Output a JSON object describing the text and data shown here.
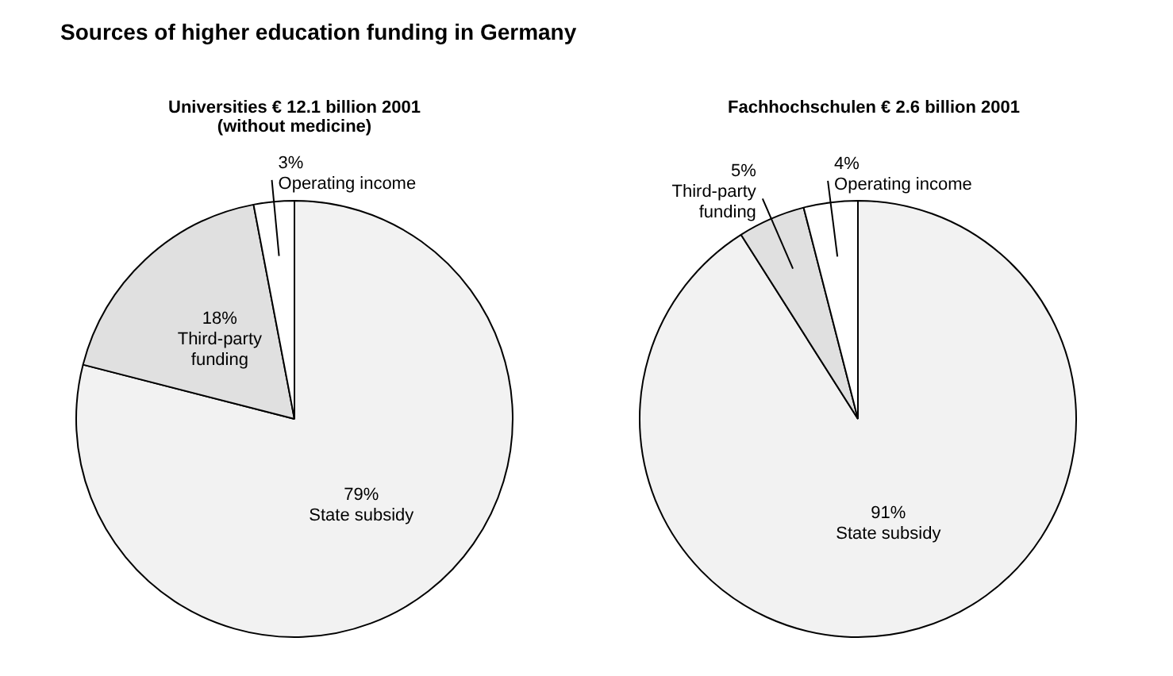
{
  "chart_data": [
    {
      "type": "pie",
      "title": "Sources of higher education funding in Germany",
      "subtitle": "Universities € 12.1 billion 2001\n(without medicine)",
      "categories": [
        "State subsidy",
        "Third-party funding",
        "Operating income"
      ],
      "values": [
        79,
        18,
        3
      ],
      "value_labels": [
        "79%",
        "18%",
        "3%"
      ],
      "colors": [
        "#f2f2f2",
        "#e0e0e0",
        "#ffffff"
      ],
      "legend": false
    },
    {
      "type": "pie",
      "title": "Fachhochschulen € 2.6 billion 2001",
      "categories": [
        "State subsidy",
        "Third-party funding",
        "Operating income"
      ],
      "values": [
        91,
        5,
        4
      ],
      "value_labels": [
        "91%",
        "5%",
        "4%"
      ],
      "colors": [
        "#f2f2f2",
        "#e0e0e0",
        "#ffffff"
      ],
      "legend": false
    }
  ]
}
